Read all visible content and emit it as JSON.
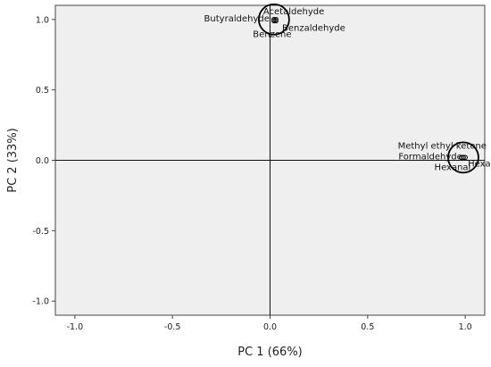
{
  "chart_data": {
    "type": "scatter",
    "xlabel": "PC 1 (66%)",
    "ylabel": "PC 2 (33%)",
    "xlim": [
      -1.1,
      1.1
    ],
    "ylim": [
      -1.1,
      1.1
    ],
    "xticks": [
      "-1.0",
      "-0.5",
      "0.0",
      "0.5",
      "1.0"
    ],
    "yticks": [
      "1.0",
      "0.5",
      "0.0",
      "-0.5",
      "-1.0"
    ],
    "grid": false,
    "reference_lines": {
      "x": 0,
      "y": 0
    },
    "points": [
      {
        "label": "Acetaldehyde",
        "x": 0.03,
        "y": 1.0
      },
      {
        "label": "Butyraldehyde",
        "x": 0.02,
        "y": 1.0
      },
      {
        "label": "Benzaldehyde",
        "x": 0.03,
        "y": 0.99
      },
      {
        "label": "Benzene",
        "x": 0.02,
        "y": 0.99
      },
      {
        "label": "Methyl ethyl ketone",
        "x": 0.99,
        "y": 0.02
      },
      {
        "label": "Formaldehyde",
        "x": 0.98,
        "y": 0.02
      },
      {
        "label": "Hexanal",
        "x": 0.99,
        "y": 0.02
      },
      {
        "label": "Hexane",
        "x": 1.0,
        "y": 0.02
      }
    ],
    "clusters": [
      {
        "cx": 0.02,
        "cy": 1.0
      },
      {
        "cx": 0.99,
        "cy": 0.02
      }
    ]
  }
}
